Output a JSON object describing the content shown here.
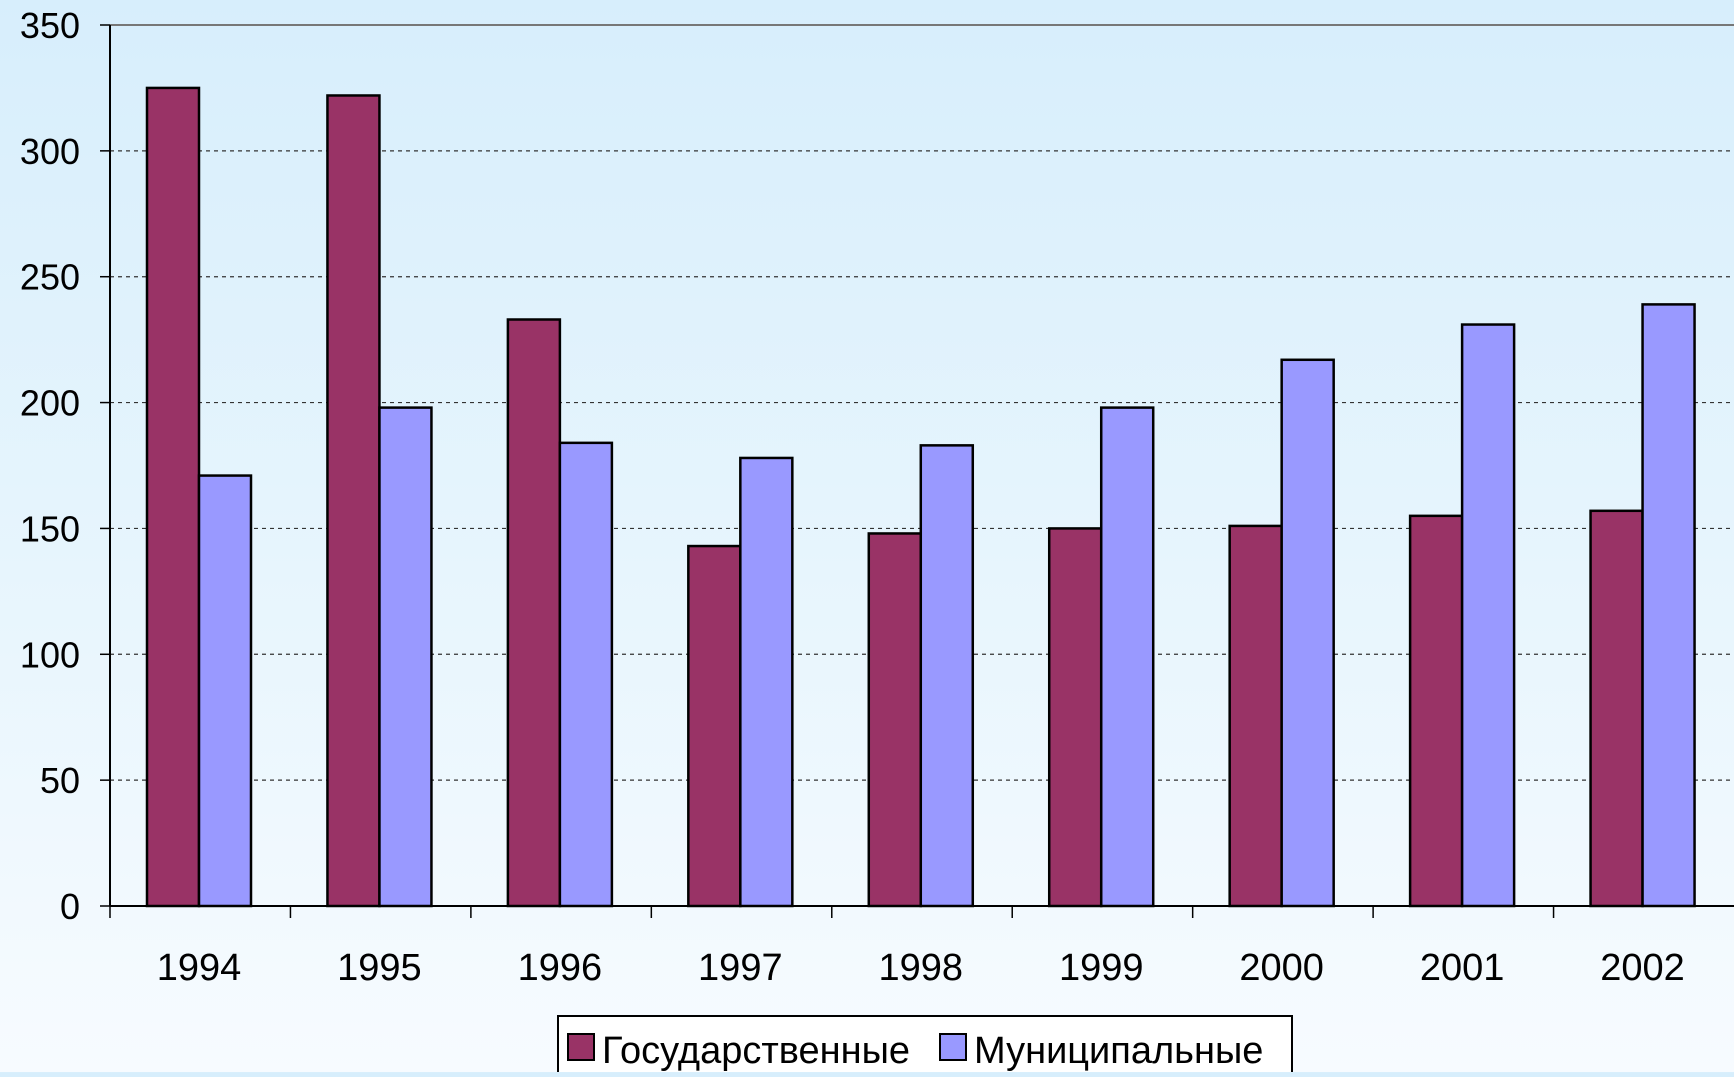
{
  "chart_data": {
    "type": "bar",
    "categories": [
      "1994",
      "1995",
      "1996",
      "1997",
      "1998",
      "1999",
      "2000",
      "2001",
      "2002"
    ],
    "series": [
      {
        "name": "Государственные",
        "color": "#993366",
        "values": [
          325,
          322,
          233,
          143,
          148,
          150,
          151,
          155,
          157
        ]
      },
      {
        "name": "Муниципальные",
        "color": "#9999ff",
        "values": [
          171,
          198,
          184,
          178,
          183,
          198,
          217,
          231,
          239
        ]
      }
    ],
    "y_ticks": [
      "0",
      "50",
      "100",
      "150",
      "200",
      "250",
      "300",
      "350"
    ],
    "ylim": [
      0,
      350
    ],
    "grid": true,
    "legend_position": "bottom",
    "title": "",
    "xlabel": "",
    "ylabel": ""
  }
}
